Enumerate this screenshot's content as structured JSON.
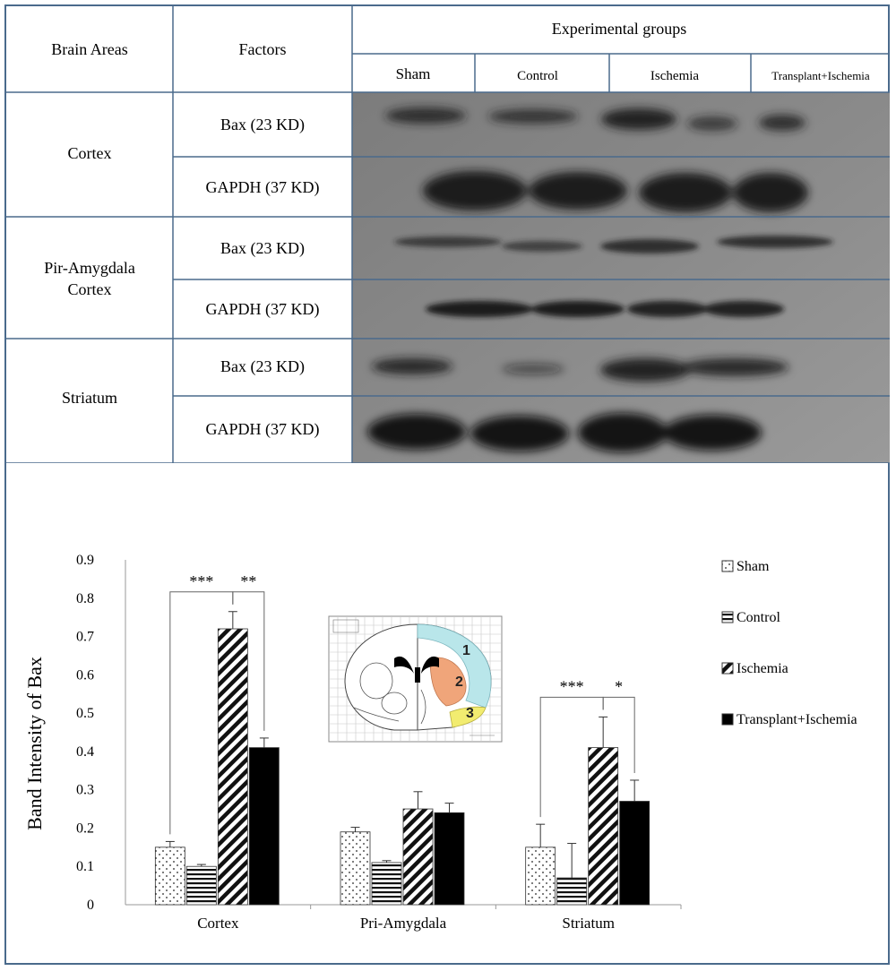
{
  "table": {
    "header_area": "Brain Areas",
    "header_factors": "Factors",
    "header_groups": "Experimental groups",
    "groups": [
      "Sham",
      "Control",
      "Ischemia",
      "Transplant+Ischemia"
    ],
    "rows": [
      {
        "area": "Cortex",
        "factors": [
          "Bax (23 KD)",
          "GAPDH (37 KD)"
        ]
      },
      {
        "area": "Pir-Amygdala\nCortex",
        "factors": [
          "Bax (23 KD)",
          "GAPDH (37 KD)"
        ]
      },
      {
        "area": "Striatum",
        "factors": [
          "Bax (23 KD)",
          "GAPDH (37 KD)"
        ]
      }
    ]
  },
  "chart_data": {
    "type": "bar",
    "ylabel": "Band Intensity of  Bax",
    "xlabel": "",
    "ylim": [
      0,
      0.9
    ],
    "yticks": [
      "0",
      "0.1",
      "0.2",
      "0.3",
      "0.4",
      "0.5",
      "0.6",
      "0.7",
      "0.8",
      "0.9"
    ],
    "categories": [
      "Cortex",
      "Pri-Amygdala",
      "Striatum"
    ],
    "series": [
      {
        "name": "Sham",
        "pattern": "dots",
        "values": [
          0.15,
          0.19,
          0.15
        ],
        "errors": [
          0.015,
          0.012,
          0.06
        ]
      },
      {
        "name": "Control",
        "pattern": "hlines",
        "values": [
          0.1,
          0.11,
          0.07
        ],
        "errors": [
          0.005,
          0.005,
          0.09
        ]
      },
      {
        "name": "Ischemia",
        "pattern": "diag",
        "values": [
          0.72,
          0.25,
          0.41
        ],
        "errors": [
          0.045,
          0.045,
          0.08
        ]
      },
      {
        "name": "Transplant+Ischemia",
        "pattern": "solid",
        "values": [
          0.41,
          0.24,
          0.27
        ],
        "errors": [
          0.025,
          0.025,
          0.055
        ]
      }
    ],
    "significance": [
      {
        "category": "Cortex",
        "from": "Sham",
        "to": "Ischemia",
        "label": "***"
      },
      {
        "category": "Cortex",
        "from": "Ischemia",
        "to": "Transplant+Ischemia",
        "label": "**"
      },
      {
        "category": "Striatum",
        "from": "Sham",
        "to": "Ischemia",
        "label": "***"
      },
      {
        "category": "Striatum",
        "from": "Ischemia",
        "to": "Transplant+Ischemia",
        "label": "*"
      }
    ],
    "legend_position": "right",
    "grid": false,
    "inset_labels": [
      "1",
      "2",
      "3"
    ]
  }
}
